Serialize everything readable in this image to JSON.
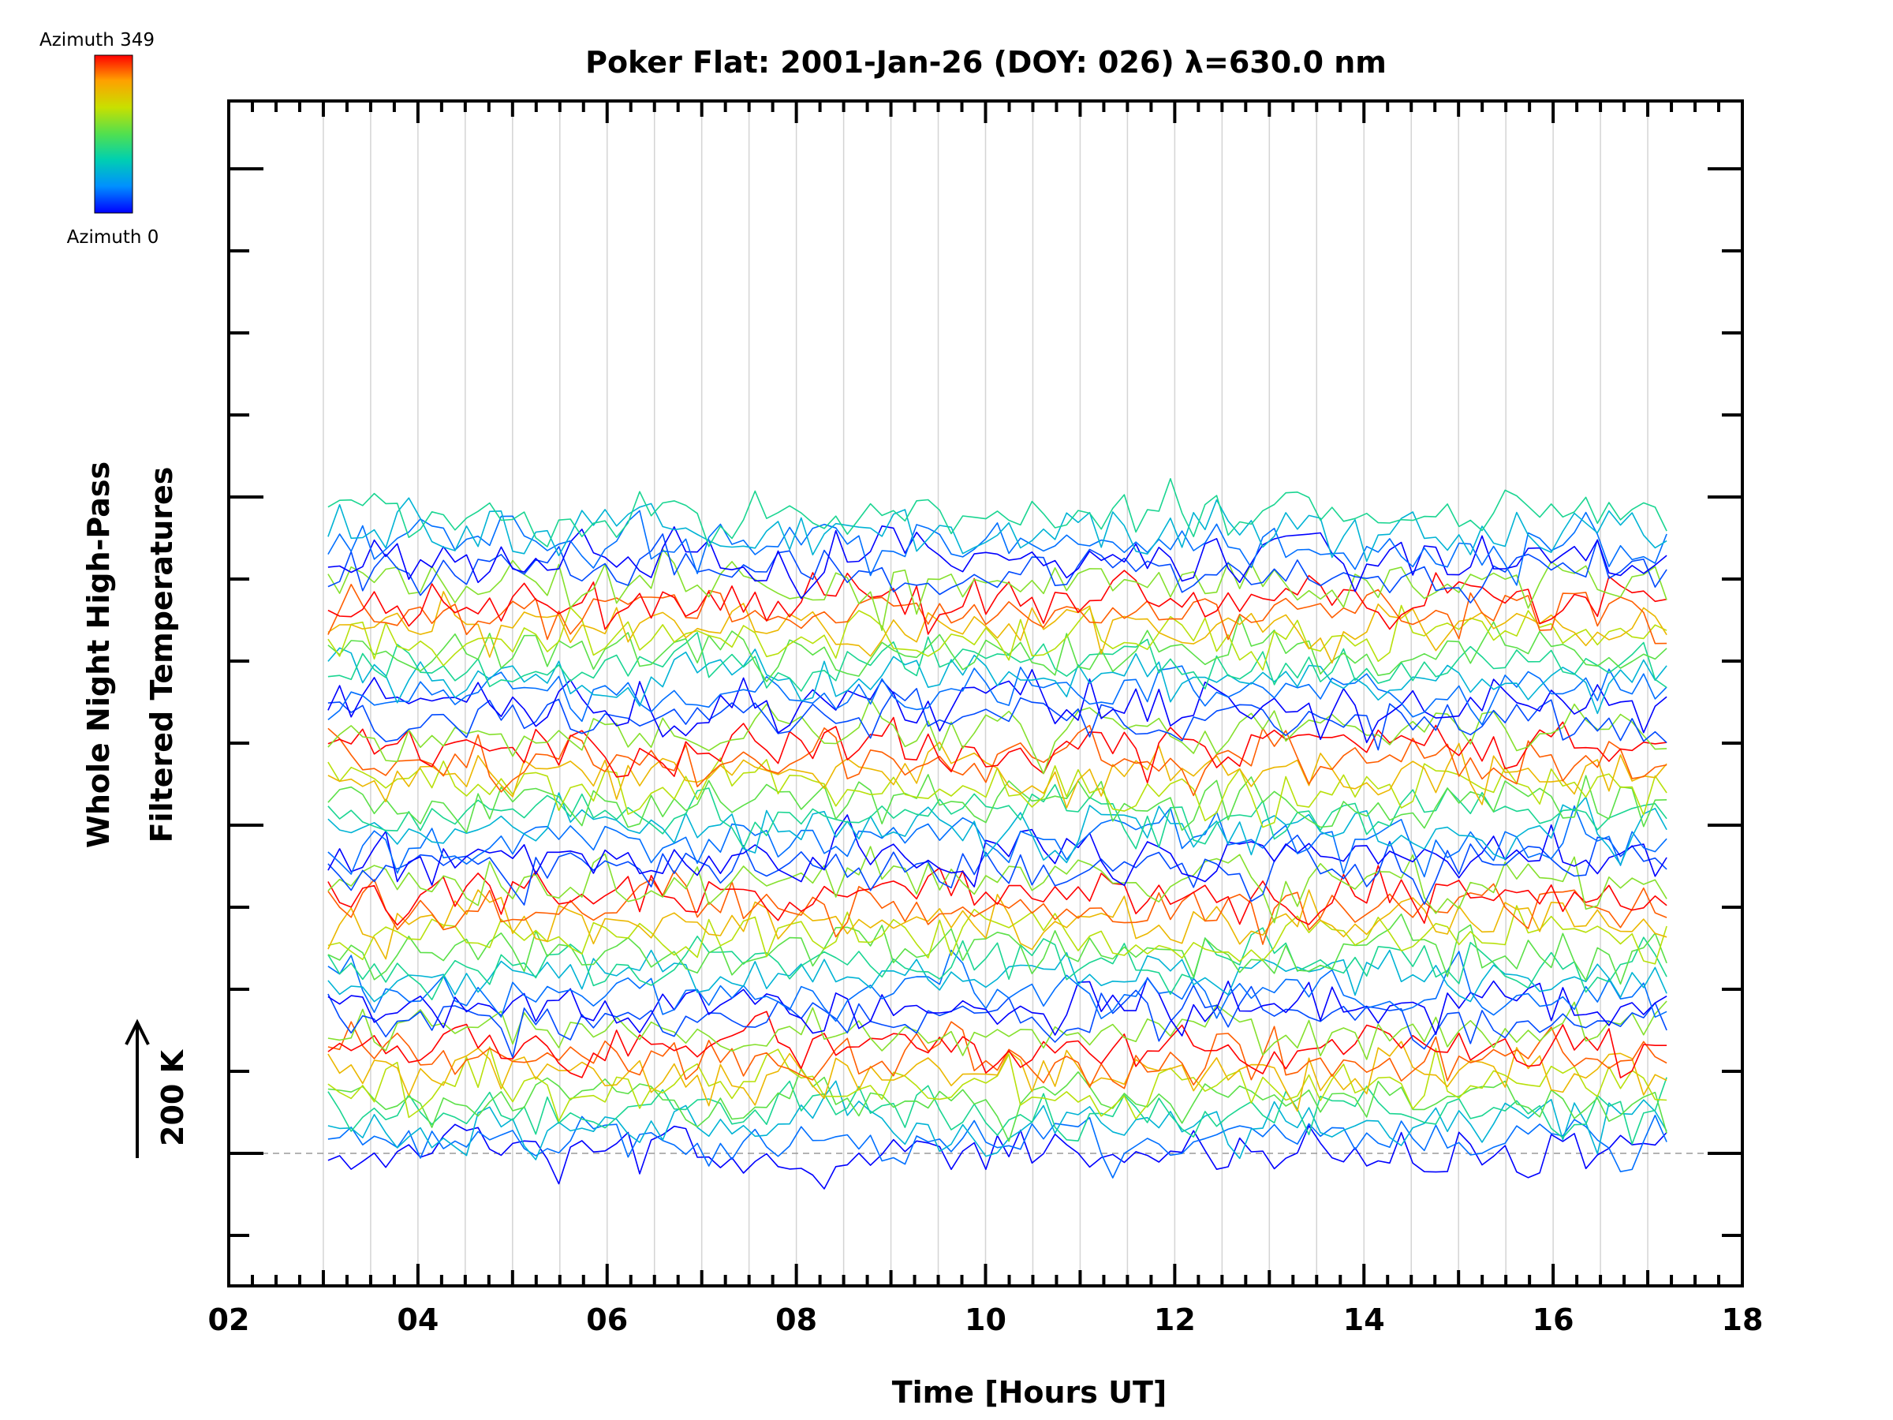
{
  "chart_data": {
    "type": "line",
    "title": "Poker Flat: 2001-Jan-26 (DOY: 026) λ=630.0 nm",
    "xlabel": "Time [Hours UT]",
    "ylabel_line1": "Whole Night High-Pass",
    "ylabel_line2": "Filtered Temperatures",
    "xlim": [
      2,
      18
    ],
    "x_ticks": [
      "02",
      "04",
      "06",
      "08",
      "10",
      "12",
      "14",
      "16",
      "18"
    ],
    "x_data_range": [
      3.05,
      17.2
    ],
    "samples_per_series": 117,
    "vertical_grid": true,
    "baseline_dashed": true,
    "scale_bar_label": "200 K",
    "scale_bar_kelvin": 200,
    "colorbar": {
      "top_label": "Azimuth 349",
      "bottom_label": "Azimuth 0",
      "colormap": [
        "#0000ff",
        "#0090ff",
        "#00d0b0",
        "#50e050",
        "#c8e000",
        "#ffa000",
        "#ff0000"
      ]
    },
    "series_count": 48,
    "series_azimuth_cycle_deg": [
      0,
      45,
      90,
      135,
      180,
      225,
      270,
      315,
      349,
      200,
      30
    ],
    "series_spacing_kelvin": 16.5,
    "series_amplitude_kelvin": 40
  }
}
